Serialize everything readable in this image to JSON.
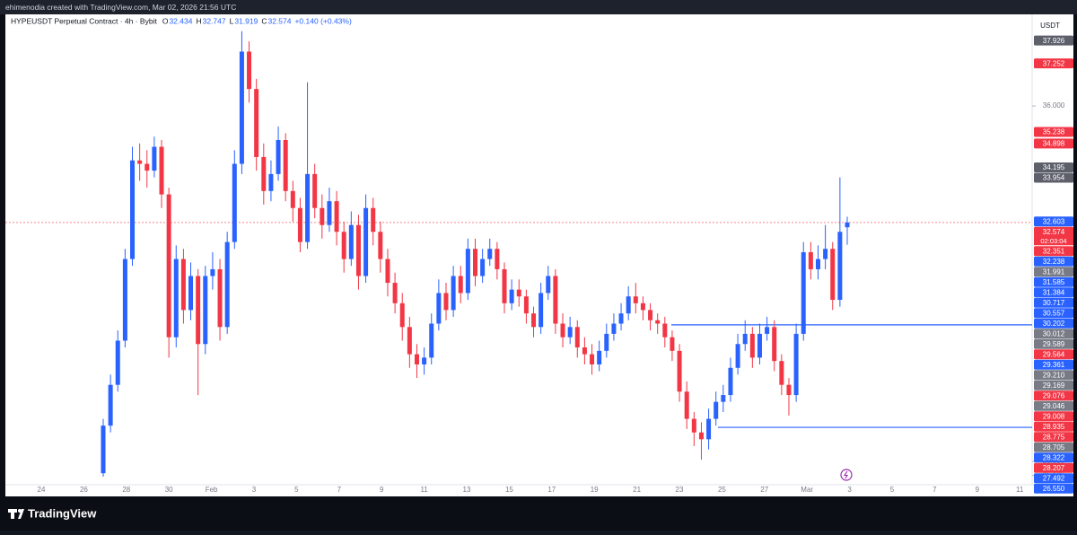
{
  "chart_data": {
    "type": "candlestick",
    "attribution": "ehimenodia created with TradingView.com, Mar 02, 2026 21:56 UTC",
    "symbol": "HYPEUSDT Perpetual Contract · 4h · Bybit",
    "ohlc_labels": [
      "O",
      "H",
      "L",
      "C"
    ],
    "change": "+0.140 (+0.43%)",
    "currency": "USDT",
    "countdown": "02:03:04",
    "brand": "TradingView",
    "up_color": "#2962ff",
    "down_color": "#f23645",
    "ylim": [
      24.73,
      38.59
    ],
    "yticks": [
      {
        "value": 36,
        "label": "36.000"
      },
      {
        "value": 25.55,
        "label": "25.550"
      },
      {
        "value": 25.135,
        "label": "25.135"
      }
    ],
    "time_labels": [
      "24",
      "26",
      "28",
      "30",
      "Feb",
      "3",
      "5",
      "7",
      "9",
      "11",
      "13",
      "15",
      "17",
      "19",
      "21",
      "23",
      "25",
      "27",
      "Mar",
      "3",
      "5",
      "7",
      "9",
      "11"
    ],
    "open": [
      25.2,
      26.6,
      27.8,
      29.1,
      31.5,
      34.4,
      34.3,
      34.1,
      34.8,
      33.4,
      29.2,
      31.5,
      30.0,
      31.0,
      29.0,
      31.0,
      31.2,
      29.5,
      32.0,
      34.3,
      37.6,
      36.5,
      34.5,
      33.5,
      34.0,
      35.0,
      33.5,
      33.0,
      32.0,
      34.0,
      33.0,
      32.5,
      33.2,
      32.3,
      31.5,
      32.5,
      31.0,
      33.0,
      32.3,
      31.5,
      30.8,
      30.2,
      29.5,
      28.7,
      28.4,
      28.6,
      29.6,
      30.5,
      30.0,
      31.0,
      30.5,
      31.8,
      31.0,
      31.5,
      31.8,
      31.2,
      30.2,
      30.6,
      30.4,
      29.9,
      29.5,
      30.5,
      31.0,
      29.6,
      29.2,
      29.5,
      28.9,
      28.7,
      28.4,
      28.8,
      29.3,
      29.6,
      29.9,
      30.4,
      30.2,
      30.0,
      29.7,
      29.6,
      29.2,
      28.8,
      27.6,
      26.8,
      26.4,
      26.2,
      26.8,
      27.3,
      27.5,
      28.3,
      29.0,
      29.3,
      28.6,
      29.3,
      29.5,
      28.5,
      27.8,
      27.5,
      29.3,
      31.7,
      31.2,
      31.5,
      31.8,
      30.3,
      32.434
    ],
    "high": [
      26.8,
      28.1,
      29.4,
      31.8,
      34.8,
      34.9,
      34.7,
      35.1,
      35.0,
      33.6,
      31.9,
      31.8,
      31.4,
      31.2,
      31.3,
      31.7,
      31.5,
      32.3,
      34.7,
      38.2,
      37.9,
      36.8,
      34.9,
      34.4,
      35.4,
      35.2,
      33.8,
      33.3,
      36.7,
      34.3,
      33.4,
      33.6,
      33.5,
      32.6,
      32.9,
      32.8,
      33.4,
      33.3,
      32.6,
      31.8,
      31.1,
      30.5,
      29.8,
      29.0,
      28.9,
      29.9,
      30.9,
      30.8,
      31.3,
      31.3,
      32.1,
      32.1,
      31.8,
      32.1,
      32.0,
      31.4,
      30.9,
      30.9,
      30.6,
      30.1,
      30.8,
      31.3,
      31.2,
      29.9,
      29.8,
      29.7,
      29.2,
      29.0,
      29.1,
      29.6,
      29.9,
      30.2,
      30.7,
      30.8,
      30.4,
      30.2,
      29.9,
      29.8,
      29.4,
      29.0,
      27.9,
      27.0,
      26.7,
      27.1,
      27.6,
      27.8,
      28.6,
      29.3,
      29.7,
      29.5,
      29.6,
      29.8,
      29.7,
      28.7,
      28.0,
      29.6,
      32.0,
      32.0,
      31.9,
      32.5,
      32.0,
      33.9,
      32.747
    ],
    "low": [
      25.1,
      26.4,
      27.6,
      28.9,
      31.3,
      33.8,
      33.6,
      33.9,
      33.0,
      28.6,
      28.9,
      29.6,
      29.7,
      27.5,
      28.7,
      30.6,
      29.1,
      29.3,
      31.8,
      34.0,
      36.1,
      34.1,
      33.1,
      33.2,
      33.8,
      33.2,
      32.6,
      31.7,
      31.8,
      32.7,
      32.1,
      32.3,
      31.9,
      31.1,
      31.3,
      30.6,
      30.8,
      31.9,
      31.1,
      30.4,
      29.9,
      29.1,
      28.3,
      28.0,
      28.1,
      28.4,
      29.4,
      29.7,
      29.8,
      30.2,
      30.3,
      30.7,
      30.8,
      31.3,
      30.9,
      29.9,
      30.0,
      30.1,
      29.6,
      29.2,
      29.3,
      30.3,
      29.3,
      28.9,
      29.0,
      28.6,
      28.4,
      28.1,
      28.2,
      28.6,
      29.1,
      29.4,
      29.7,
      29.9,
      29.7,
      29.4,
      29.3,
      28.9,
      28.5,
      27.3,
      26.5,
      26.0,
      25.6,
      25.9,
      26.6,
      27.0,
      27.3,
      28.1,
      28.8,
      28.3,
      28.4,
      29.1,
      28.2,
      27.5,
      26.9,
      27.3,
      29.1,
      30.9,
      30.9,
      31.2,
      30.0,
      30.1,
      31.919
    ],
    "close": [
      26.6,
      27.8,
      29.1,
      31.5,
      34.4,
      34.3,
      34.1,
      34.8,
      33.4,
      29.2,
      31.5,
      30.0,
      31.0,
      29.0,
      31.0,
      31.2,
      29.5,
      32.0,
      34.3,
      37.6,
      36.5,
      34.5,
      33.5,
      34.0,
      35.0,
      33.5,
      33.0,
      32.0,
      34.0,
      33.0,
      32.5,
      33.2,
      32.3,
      31.5,
      32.5,
      31.0,
      33.0,
      32.3,
      31.5,
      30.8,
      30.2,
      29.5,
      28.7,
      28.4,
      28.6,
      29.6,
      30.5,
      30.0,
      31.0,
      30.5,
      31.8,
      31.0,
      31.5,
      31.8,
      31.2,
      30.2,
      30.6,
      30.4,
      29.9,
      29.5,
      30.5,
      31.0,
      29.6,
      29.2,
      29.5,
      28.9,
      28.7,
      28.4,
      28.8,
      29.3,
      29.6,
      29.9,
      30.4,
      30.2,
      30.0,
      29.7,
      29.6,
      29.2,
      28.8,
      27.6,
      26.8,
      26.4,
      26.2,
      26.8,
      27.3,
      27.5,
      28.3,
      29.0,
      29.3,
      28.6,
      29.3,
      29.5,
      28.5,
      27.8,
      27.5,
      29.3,
      31.7,
      31.2,
      31.5,
      31.8,
      30.3,
      32.3,
      32.574
    ],
    "levels": [
      {
        "value": 29.564,
        "color": "#2962ff"
      },
      {
        "value": 26.55,
        "color": "#2962ff"
      }
    ],
    "price_labels": [
      {
        "value": 37.926,
        "label": "37.926",
        "color": "#5d606b"
      },
      {
        "value": 37.252,
        "label": "37.252",
        "color": "#f23645"
      },
      {
        "value": 35.238,
        "label": "35.238",
        "color": "#f23645"
      },
      {
        "value": 34.898,
        "label": "34.898",
        "color": "#f23645"
      },
      {
        "value": 34.195,
        "label": "34.195",
        "color": "#5d606b"
      },
      {
        "value": 33.954,
        "label": "33.954",
        "color": "#5d606b"
      },
      {
        "value": 32.603,
        "label": "32.603",
        "color": "#2962ff"
      },
      {
        "value": 32.574,
        "label": "32.574",
        "color": "#f23645"
      },
      {
        "value": 32.351,
        "label": "32.351",
        "color": "#f23645"
      },
      {
        "value": 32.238,
        "label": "32.238",
        "color": "#2962ff"
      },
      {
        "value": 31.991,
        "label": "31.991",
        "color": "#787b86"
      },
      {
        "value": 31.585,
        "label": "31.585",
        "color": "#2962ff"
      },
      {
        "value": 31.384,
        "label": "31.384",
        "color": "#2962ff"
      },
      {
        "value": 30.717,
        "label": "30.717",
        "color": "#2962ff"
      },
      {
        "value": 30.557,
        "label": "30.557",
        "color": "#2962ff"
      },
      {
        "value": 30.202,
        "label": "30.202",
        "color": "#2962ff"
      },
      {
        "value": 30.012,
        "label": "30.012",
        "color": "#787b86"
      },
      {
        "value": 29.589,
        "label": "29.589",
        "color": "#787b86"
      },
      {
        "value": 29.564,
        "label": "29.564",
        "color": "#f23645"
      },
      {
        "value": 29.361,
        "label": "29.361",
        "color": "#2962ff"
      },
      {
        "value": 29.21,
        "label": "29.210",
        "color": "#787b86"
      },
      {
        "value": 29.169,
        "label": "29.169",
        "color": "#787b86"
      },
      {
        "value": 29.076,
        "label": "29.076",
        "color": "#f23645"
      },
      {
        "value": 29.046,
        "label": "29.046",
        "color": "#787b86"
      },
      {
        "value": 29.008,
        "label": "29.008",
        "color": "#f23645"
      },
      {
        "value": 28.935,
        "label": "28.935",
        "color": "#f23645"
      },
      {
        "value": 28.775,
        "label": "28.775",
        "color": "#f23645"
      },
      {
        "value": 28.705,
        "label": "28.705",
        "color": "#787b86"
      },
      {
        "value": 28.322,
        "label": "28.322",
        "color": "#2962ff"
      },
      {
        "value": 28.207,
        "label": "28.207",
        "color": "#f23645"
      },
      {
        "value": 27.492,
        "label": "27.492",
        "color": "#2962ff"
      },
      {
        "value": 26.55,
        "label": "26.550",
        "color": "#2962ff"
      }
    ]
  }
}
